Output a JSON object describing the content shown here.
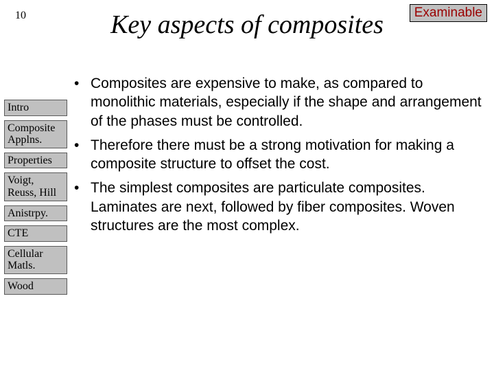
{
  "page_number": "10",
  "badge": "Examinable",
  "badge_color": "#9a0000",
  "title": "Key aspects of composites",
  "sidebar": {
    "items": [
      {
        "label": "Intro"
      },
      {
        "label": "Composite Applns."
      },
      {
        "label": "Properties"
      },
      {
        "label": "Voigt, Reuss, Hill"
      },
      {
        "label": "Anistrpy."
      },
      {
        "label": "CTE"
      },
      {
        "label": "Cellular Matls."
      },
      {
        "label": "Wood"
      }
    ]
  },
  "content": {
    "bullets": [
      "Composites are expensive to make, as compared to monolithic materials, especially if the shape and arrangement of the phases must be controlled.",
      "Therefore there must be a strong motivation for making a composite structure to offset the cost.",
      "The simplest composites are particulate composites.  Laminates are next, followed by fiber composites.  Woven structures are the most complex."
    ]
  },
  "style": {
    "background_color": "#ffffff",
    "text_color": "#000000",
    "title_fontsize": 38,
    "bullet_fontsize": 21,
    "sidebar_bg": "#c0c0c0",
    "sidebar_border": "#5a5a5a",
    "badge_bg": "#c0c0c0"
  }
}
